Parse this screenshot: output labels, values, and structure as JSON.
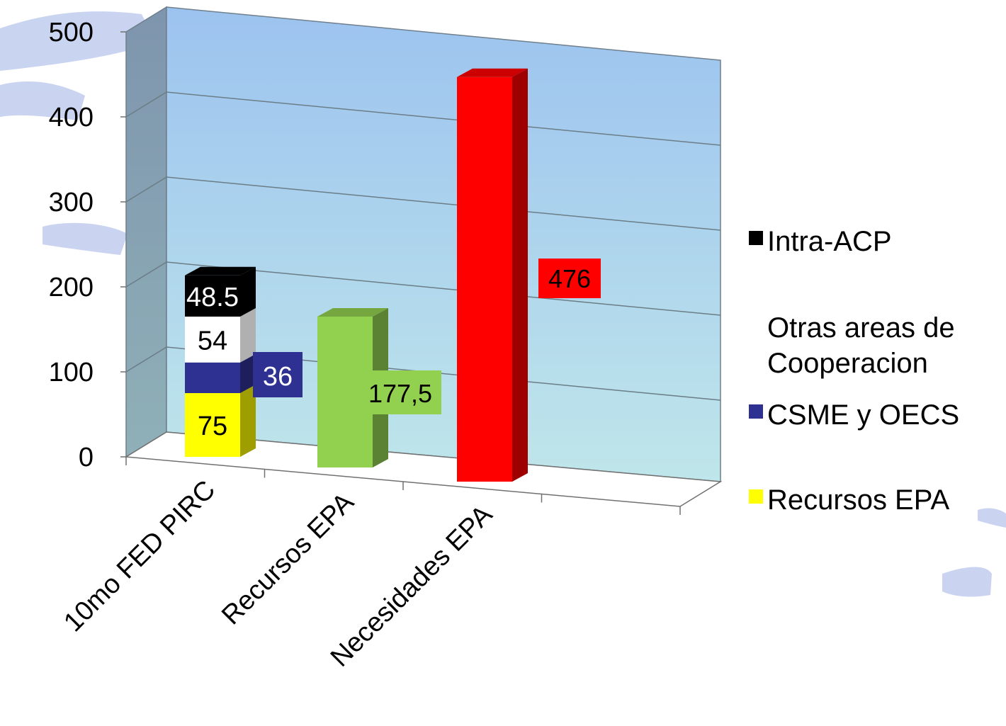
{
  "chart_data": {
    "type": "bar",
    "stacked": true,
    "three_d": true,
    "categories": [
      "10mo FED PIRC",
      "Recursos EPA",
      "Necesidades EPA"
    ],
    "ylim": [
      0,
      500
    ],
    "yticks": [
      "0",
      "100",
      "200",
      "300",
      "400",
      "500"
    ],
    "grid": true,
    "legend_position": "right",
    "series": [
      {
        "name": "Recursos EPA",
        "color": "#ffff00",
        "values": [
          75,
          null,
          null
        ],
        "labels": [
          "75",
          "",
          ""
        ]
      },
      {
        "name": "CSME y OECS",
        "color": "#2e3192",
        "values": [
          36,
          null,
          null
        ],
        "labels": [
          "36",
          "",
          ""
        ]
      },
      {
        "name": "Otras areas de Cooperacion",
        "color": "#ffffff",
        "values": [
          54,
          null,
          null
        ],
        "labels": [
          "54",
          "",
          ""
        ]
      },
      {
        "name": "Intra-ACP",
        "color": "#000000",
        "values": [
          48.5,
          null,
          null
        ],
        "labels": [
          "48.5",
          "",
          ""
        ]
      },
      {
        "name": "",
        "color": "#92d050",
        "values": [
          null,
          177.5,
          null
        ],
        "labels": [
          "",
          "177,5",
          ""
        ]
      },
      {
        "name": "",
        "color": "#ff0000",
        "values": [
          null,
          null,
          476
        ],
        "labels": [
          "",
          "",
          "476"
        ]
      }
    ],
    "legend": [
      {
        "label": "Intra-ACP",
        "color": "#000000"
      },
      {
        "label": "Otras areas de Cooperacion",
        "color": "#ffffff"
      },
      {
        "label": "CSME y OECS",
        "color": "#2e3192"
      },
      {
        "label": "Recursos EPA",
        "color": "#ffff00"
      }
    ]
  }
}
